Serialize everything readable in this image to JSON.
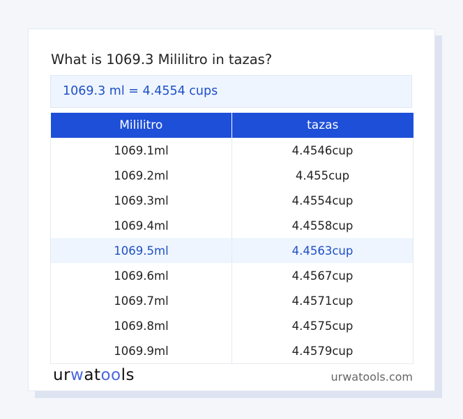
{
  "title": "What is 1069.3 Mililitro in tazas?",
  "result": "1069.3 ml = 4.4554 cups",
  "table": {
    "headers": [
      "Mililitro",
      "tazas"
    ],
    "rows": [
      [
        "1069.1ml",
        "4.4546cup"
      ],
      [
        "1069.2ml",
        "4.455cup"
      ],
      [
        "1069.3ml",
        "4.4554cup"
      ],
      [
        "1069.4ml",
        "4.4558cup"
      ],
      [
        "1069.5ml",
        "4.4563cup"
      ],
      [
        "1069.6ml",
        "4.4567cup"
      ],
      [
        "1069.7ml",
        "4.4571cup"
      ],
      [
        "1069.8ml",
        "4.4575cup"
      ],
      [
        "1069.9ml",
        "4.4579cup"
      ]
    ],
    "highlighted_row": 4
  },
  "footer": {
    "logo": {
      "part1": "ur",
      "part2": "w",
      "part3": "at",
      "part4": "oo",
      "part5": "ls"
    },
    "site": "urwatools.com"
  },
  "colors": {
    "accent": "#1e4fd8",
    "highlight_bg": "#eef5fe",
    "highlight_text": "#1f4fc4"
  }
}
